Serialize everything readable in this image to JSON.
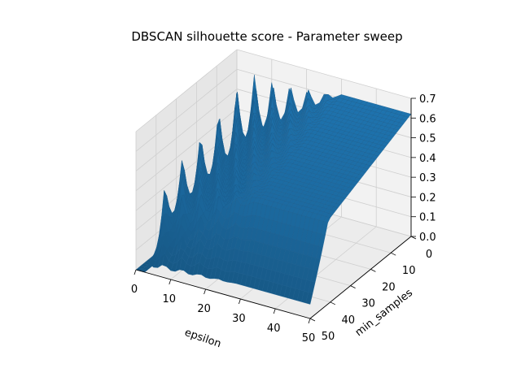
{
  "chart_data": {
    "type": "surface3d",
    "title": "DBSCAN silhouette score - Parameter sweep",
    "xlabel": "epsilon",
    "ylabel": "min_samples",
    "zlabel": "",
    "xlim": [
      0,
      50
    ],
    "ylim": [
      0,
      50
    ],
    "zlim": [
      0,
      0.7
    ],
    "x_ticks": [
      "0",
      "10",
      "20",
      "30",
      "40",
      "50"
    ],
    "y_ticks": [
      "0",
      "10",
      "20",
      "30",
      "40",
      "50"
    ],
    "z_ticks": [
      "0.0",
      "0.1",
      "0.2",
      "0.3",
      "0.4",
      "0.5",
      "0.6",
      "0.7"
    ],
    "grid": true,
    "surface_color": "#1f77b4",
    "edge_color": "#1b5f8f",
    "description_of_surface": {
      "zero_region": "epsilon below ~3 across all min_samples",
      "ridge_plateau_near_epsilon": [
        3,
        50
      ],
      "plateau_level_low_min_samples": 0.62,
      "plateau_level_high_min_samples": 0.38,
      "oscillating_epsilon_range": [
        3,
        30
      ]
    }
  }
}
